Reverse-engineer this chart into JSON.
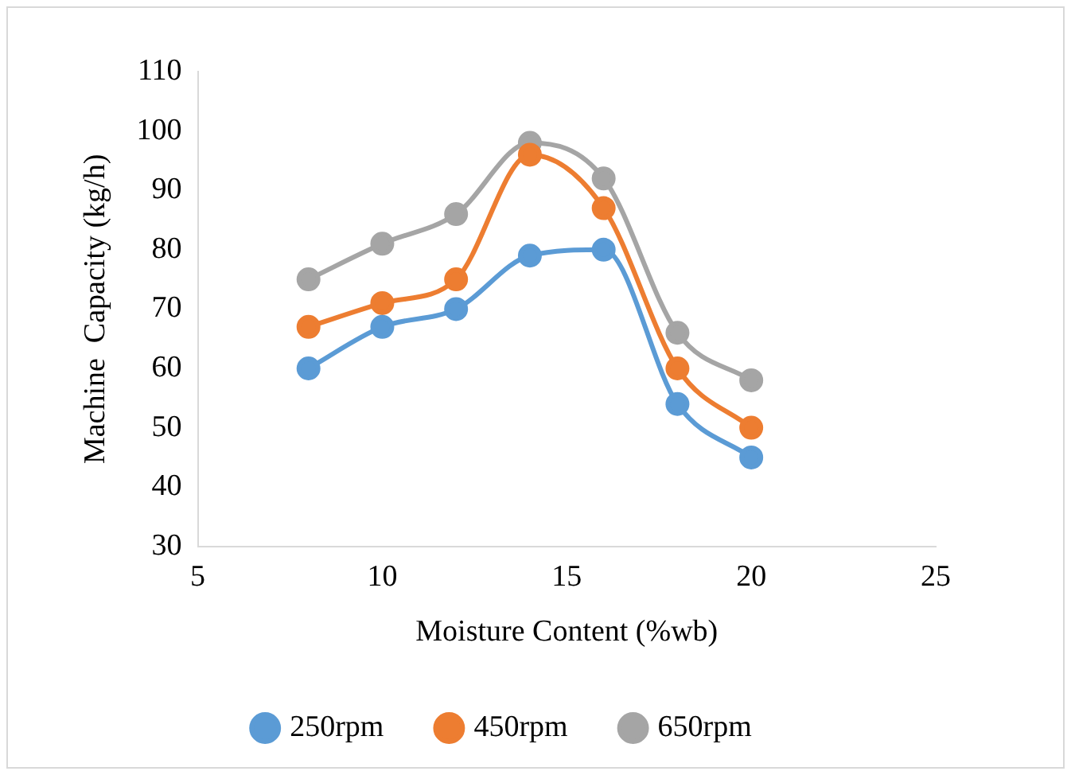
{
  "chart_data": {
    "type": "line",
    "xlabel": "Moisture Content (%wb)",
    "ylabel": "Machine  Capacity (kg/h)",
    "x": [
      8,
      10,
      12,
      14,
      16,
      18,
      20
    ],
    "series": [
      {
        "name": "250rpm",
        "color": "#5b9bd5",
        "values": [
          60,
          67,
          70,
          79,
          80,
          54,
          45
        ]
      },
      {
        "name": "450rpm",
        "color": "#ed7d31",
        "values": [
          67,
          71,
          75,
          96,
          87,
          60,
          50
        ]
      },
      {
        "name": "650rpm",
        "color": "#a5a5a5",
        "values": [
          75,
          81,
          86,
          98,
          92,
          66,
          58
        ]
      }
    ],
    "xlim": [
      5,
      25
    ],
    "xticks": [
      5,
      10,
      15,
      20,
      25
    ],
    "ylim": [
      30,
      110
    ],
    "yticks": [
      30,
      40,
      50,
      60,
      70,
      80,
      90,
      100,
      110
    ],
    "grid": false,
    "legend": "bottom",
    "marker": "circle",
    "line_style": "solid"
  }
}
